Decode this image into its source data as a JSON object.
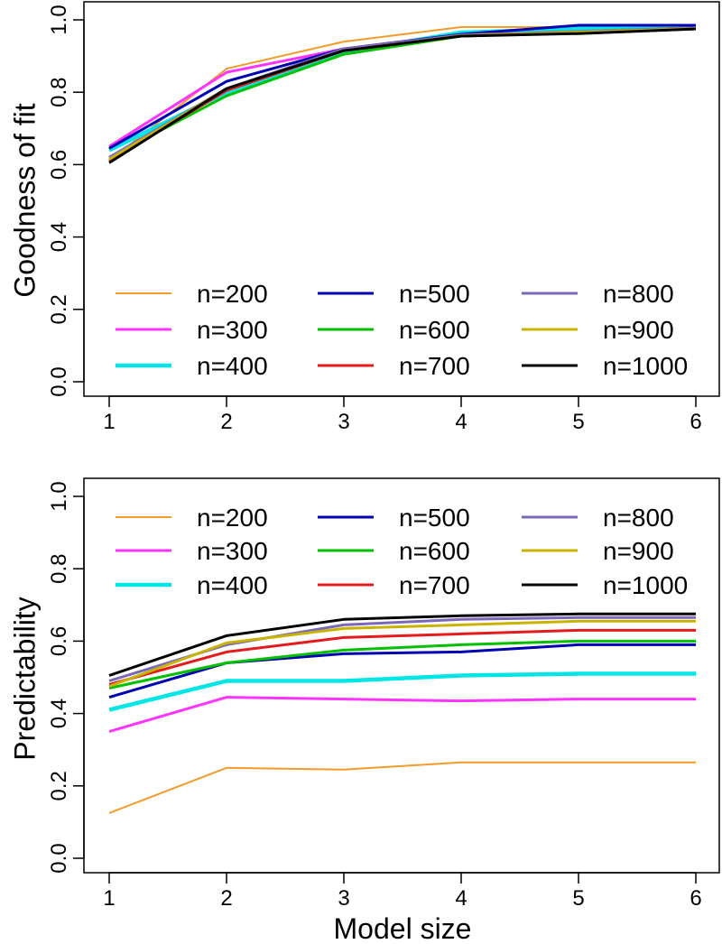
{
  "chart_data": [
    {
      "type": "line",
      "title": "",
      "xlabel": "",
      "ylabel": "Goodness of fit",
      "xlim": [
        1,
        6
      ],
      "ylim": [
        0,
        1
      ],
      "x": [
        1,
        2,
        3,
        4,
        5,
        6
      ],
      "x_ticks": [
        "1",
        "2",
        "3",
        "4",
        "5",
        "6"
      ],
      "y_ticks": [
        "0.0",
        "0.2",
        "0.4",
        "0.6",
        "0.8",
        "1.0"
      ],
      "grid": false,
      "legend_position": "bottom",
      "series": [
        {
          "name": "n=200",
          "color": "#f39c2b",
          "values": [
            0.61,
            0.865,
            0.94,
            0.98,
            0.98,
            0.98
          ]
        },
        {
          "name": "n=300",
          "color": "#ff33ff",
          "values": [
            0.65,
            0.855,
            0.92,
            0.96,
            0.975,
            0.98
          ]
        },
        {
          "name": "n=400",
          "color": "#00e5e5",
          "values": [
            0.64,
            0.8,
            0.91,
            0.965,
            0.975,
            0.98
          ]
        },
        {
          "name": "n=500",
          "color": "#0000b3",
          "values": [
            0.645,
            0.83,
            0.92,
            0.96,
            0.985,
            0.985
          ]
        },
        {
          "name": "n=600",
          "color": "#00c000",
          "values": [
            0.62,
            0.79,
            0.905,
            0.955,
            0.965,
            0.975
          ]
        },
        {
          "name": "n=700",
          "color": "#e51b1b",
          "values": [
            0.61,
            0.805,
            0.915,
            0.955,
            0.965,
            0.975
          ]
        },
        {
          "name": "n=800",
          "color": "#7b68b8",
          "values": [
            0.62,
            0.81,
            0.92,
            0.958,
            0.968,
            0.978
          ]
        },
        {
          "name": "n=900",
          "color": "#c8b400",
          "values": [
            0.615,
            0.81,
            0.915,
            0.956,
            0.966,
            0.976
          ]
        },
        {
          "name": "n=1000",
          "color": "#000000",
          "values": [
            0.605,
            0.81,
            0.915,
            0.955,
            0.962,
            0.975
          ]
        }
      ]
    },
    {
      "type": "line",
      "title": "",
      "xlabel": "Model size",
      "ylabel": "Predictability",
      "xlim": [
        1,
        6
      ],
      "ylim": [
        0,
        1
      ],
      "x": [
        1,
        2,
        3,
        4,
        5,
        6
      ],
      "x_ticks": [
        "1",
        "2",
        "3",
        "4",
        "5",
        "6"
      ],
      "y_ticks": [
        "0.0",
        "0.2",
        "0.4",
        "0.6",
        "0.8",
        "1.0"
      ],
      "grid": false,
      "legend_position": "top",
      "series": [
        {
          "name": "n=200",
          "color": "#f39c2b",
          "values": [
            0.125,
            0.25,
            0.245,
            0.265,
            0.265,
            0.265
          ]
        },
        {
          "name": "n=300",
          "color": "#ff33ff",
          "values": [
            0.35,
            0.445,
            0.44,
            0.435,
            0.44,
            0.44
          ]
        },
        {
          "name": "n=400",
          "color": "#00e5e5",
          "values": [
            0.41,
            0.49,
            0.49,
            0.505,
            0.51,
            0.51
          ]
        },
        {
          "name": "n=500",
          "color": "#0000b3",
          "values": [
            0.445,
            0.54,
            0.565,
            0.57,
            0.59,
            0.59
          ]
        },
        {
          "name": "n=600",
          "color": "#00c000",
          "values": [
            0.47,
            0.54,
            0.575,
            0.59,
            0.6,
            0.6
          ]
        },
        {
          "name": "n=700",
          "color": "#e51b1b",
          "values": [
            0.48,
            0.57,
            0.61,
            0.62,
            0.63,
            0.63
          ]
        },
        {
          "name": "n=800",
          "color": "#7b68b8",
          "values": [
            0.49,
            0.59,
            0.645,
            0.66,
            0.665,
            0.665
          ]
        },
        {
          "name": "n=900",
          "color": "#c8b400",
          "values": [
            0.475,
            0.595,
            0.635,
            0.645,
            0.655,
            0.655
          ]
        },
        {
          "name": "n=1000",
          "color": "#000000",
          "values": [
            0.505,
            0.615,
            0.66,
            0.67,
            0.675,
            0.675
          ]
        }
      ]
    }
  ]
}
